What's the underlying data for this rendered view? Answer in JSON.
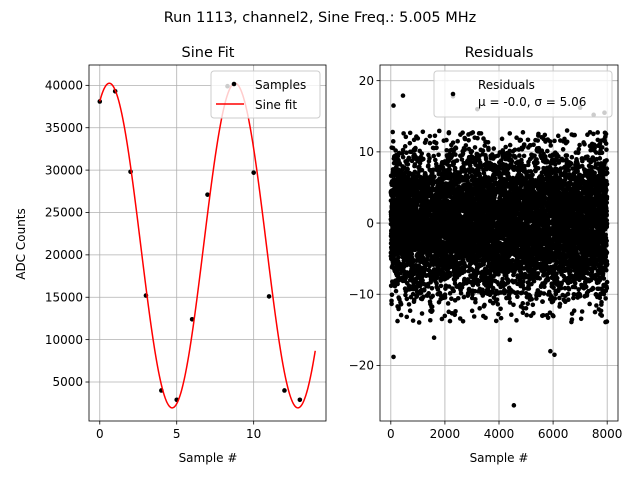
{
  "figure": {
    "suptitle": "Run 1113, channel2, Sine Freq.: 5.005 MHz"
  },
  "colors": {
    "fit_line": "#ff0000",
    "points": "#000000",
    "grid": "#b0b0b0",
    "legend_border": "#cccccc"
  },
  "chart_data": [
    {
      "type": "scatter",
      "title": "Sine Fit",
      "xlabel": "Sample #",
      "ylabel": "ADC Counts",
      "xlim": [
        -0.7,
        14.7
      ],
      "ylim": [
        400,
        42400
      ],
      "grid": true,
      "legend_position": "top-right",
      "x_ticks": [
        0,
        5,
        10
      ],
      "y_ticks": [
        5000,
        10000,
        15000,
        20000,
        25000,
        30000,
        35000,
        40000
      ],
      "series": [
        {
          "name": "Samples",
          "kind": "scatter",
          "color": "#000000",
          "points": [
            [
              0,
              38100
            ],
            [
              1,
              39300
            ],
            [
              2,
              29800
            ],
            [
              3,
              15200
            ],
            [
              4,
              4000
            ],
            [
              5,
              2900
            ],
            [
              6,
              12400
            ],
            [
              7,
              27100
            ],
            [
              8.3,
              39900
            ],
            [
              10,
              29700
            ],
            [
              11,
              15100
            ],
            [
              12,
              4000
            ],
            [
              13,
              2900
            ]
          ]
        },
        {
          "name": "Sine fit",
          "kind": "line",
          "color": "#ff0000",
          "function": {
            "form": "offset + amplitude * cos(2*pi*(x - peak_x)/period)",
            "offset": 21100,
            "amplitude": 19150,
            "period": 8.17,
            "peak_x": 0.62
          },
          "x_range": [
            0,
            14
          ]
        }
      ]
    },
    {
      "type": "scatter",
      "title": "Residuals",
      "xlabel": "Sample #",
      "ylabel": "",
      "xlim": [
        -400,
        8400
      ],
      "ylim": [
        -27.8,
        22.2
      ],
      "grid": true,
      "legend_position": "top-right",
      "x_ticks": [
        0,
        2000,
        4000,
        6000,
        8000
      ],
      "y_ticks": [
        -20,
        -10,
        0,
        10,
        20
      ],
      "series": [
        {
          "name": "Residuals",
          "legend_label": "Residuals\nμ = -0.0, σ = 5.06",
          "kind": "scatter",
          "color": "#000000",
          "n_points": 8000,
          "mean": 0.0,
          "std": 5.06,
          "outliers": [
            [
              4550,
              -25.6
            ],
            [
              100,
              -18.8
            ],
            [
              5900,
              -18
            ],
            [
              6050,
              -18.5
            ],
            [
              2300,
              17.8
            ],
            [
              100,
              16.5
            ],
            [
              7500,
              15.2
            ],
            [
              7900,
              15.5
            ],
            [
              7000,
              16.2
            ],
            [
              3200,
              16.0
            ],
            [
              450,
              17.9
            ],
            [
              1600,
              -16.1
            ],
            [
              4400,
              -16.4
            ]
          ]
        }
      ]
    }
  ]
}
